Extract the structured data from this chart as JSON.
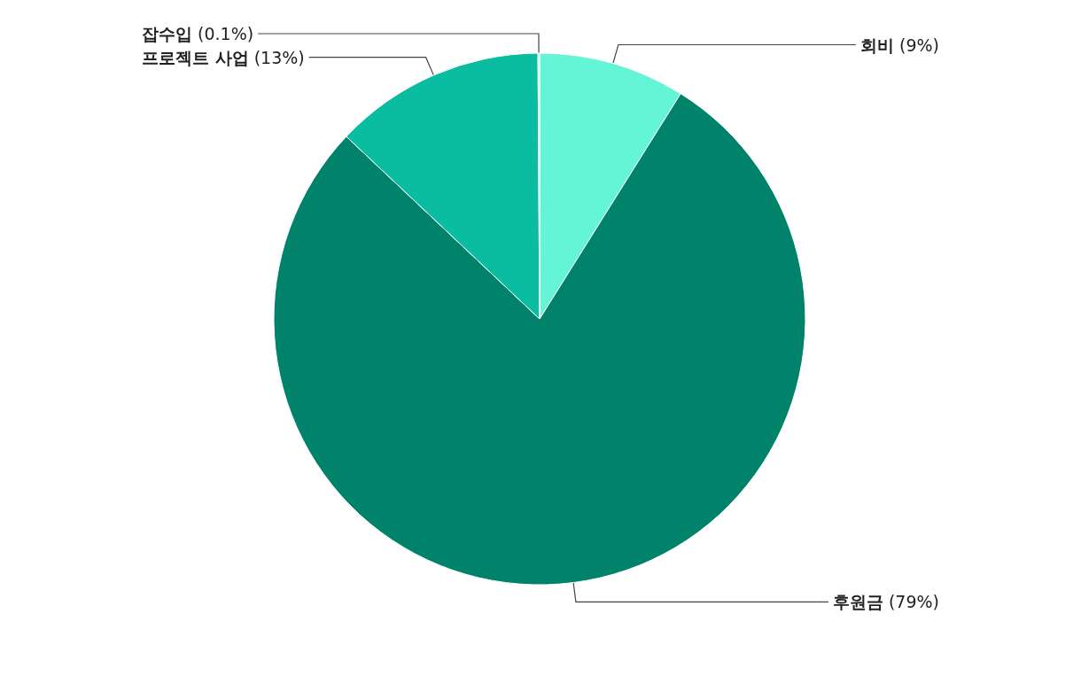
{
  "chart_data": {
    "type": "pie",
    "categories": [
      "회비",
      "후원금",
      "프로젝트 사업",
      "잡수입"
    ],
    "values": [
      9,
      79,
      13,
      0.1
    ],
    "value_labels": [
      "(9%)",
      "(79%)",
      "(13%)",
      "(0.1%)"
    ],
    "colors": [
      "#64f5d6",
      "#00836a",
      "#0bbda0",
      "#b5eee0"
    ],
    "legend": false
  }
}
